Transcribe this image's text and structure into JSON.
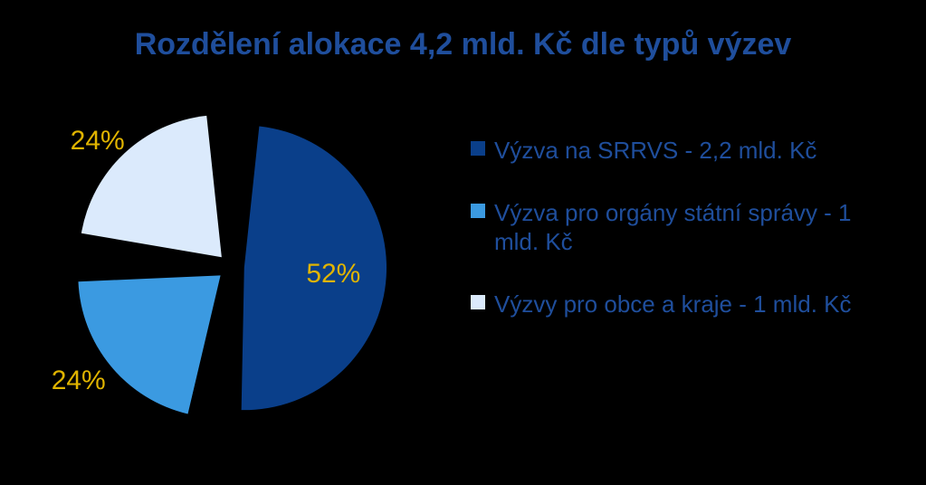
{
  "chart": {
    "type": "pie",
    "title": "Rozdělení alokace 4,2 mld. Kč dle typů výzev",
    "title_color": "#1f4e9c",
    "title_fontsize": 34,
    "background_color": "#000000",
    "pie_radius": 170,
    "slice_gap": 18,
    "explode_distance": 16,
    "label_color": "#e0b400",
    "label_fontsize": 30,
    "legend_text_color": "#1f4e9c",
    "legend_fontsize": 26,
    "slices": [
      {
        "label": "Výzva na SRRVS - 2,2 mld. Kč",
        "percent": 52,
        "percent_text": "52%",
        "color": "#0a3f8a"
      },
      {
        "label": "Výzva pro orgány státní správy - 1 mld. Kč",
        "percent": 24,
        "percent_text": "24%",
        "color": "#3b9ae1"
      },
      {
        "label": "Výzvy pro obce a kraje - 1 mld. Kč",
        "percent": 24,
        "percent_text": "24%",
        "color": "#dbeafc"
      }
    ]
  }
}
